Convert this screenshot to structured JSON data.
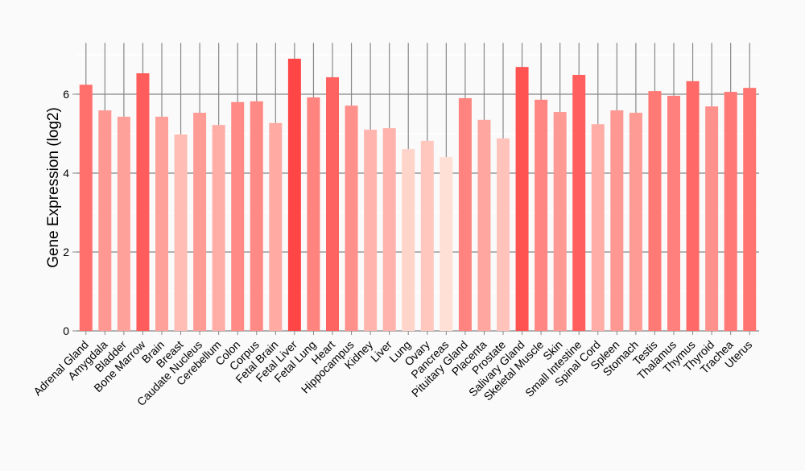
{
  "chart_data": {
    "type": "bar",
    "title": "",
    "xlabel": "",
    "ylabel": "Gene Expression (log2)",
    "ylim": [
      0,
      7.3
    ],
    "yticks": [
      0,
      2,
      4,
      6
    ],
    "grid": true,
    "color_low": "#ffe0d6",
    "color_high": "#ff4646",
    "categories": [
      "Adrenal Gland",
      "Amygdala",
      "Bladder",
      "Bone Marrow",
      "Brain",
      "Breast",
      "Caudate Nucleus",
      "Cerebellum",
      "Colon",
      "Corpus",
      "Fetal Brain",
      "Fetal Liver",
      "Fetal Lung",
      "Heart",
      "Hippocampus",
      "Kidney",
      "Liver",
      "Lung",
      "Ovary",
      "Pancreas",
      "Pituitary Gland",
      "Placenta",
      "Prostate",
      "Salivary Gland",
      "Skeletal Muscle",
      "Skin",
      "Small Intestine",
      "Spinal Cord",
      "Spleen",
      "Stomach",
      "Testis",
      "Thalamus",
      "Thymus",
      "Thyroid",
      "Trachea",
      "Uterus"
    ],
    "values": [
      6.24,
      5.59,
      5.43,
      6.53,
      5.43,
      4.98,
      5.53,
      5.22,
      5.8,
      5.82,
      5.27,
      6.9,
      5.92,
      6.43,
      5.71,
      5.1,
      5.14,
      4.61,
      4.82,
      4.41,
      5.9,
      5.35,
      4.88,
      6.69,
      5.86,
      5.55,
      6.49,
      5.24,
      5.59,
      5.53,
      6.08,
      5.96,
      6.33,
      5.69,
      6.06,
      6.16
    ]
  }
}
